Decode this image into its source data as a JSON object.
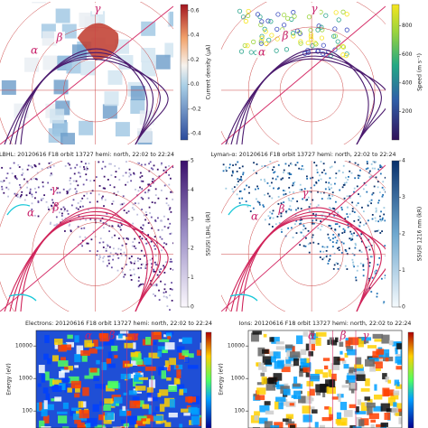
{
  "panels": [
    {
      "colorbar": {
        "label": "Current density (µA)",
        "lim": [
          -0.45,
          0.65
        ],
        "ticks": [
          0.6,
          0.4,
          0.2,
          {
            "value": 0,
            "label": "0.0"
          },
          -0.2,
          -0.4
        ]
      },
      "markers": [
        "α",
        "β",
        "γ"
      ]
    },
    {
      "colorbar": {
        "label": "Speed (m s⁻¹)",
        "lim": [
          0,
          950
        ],
        "ticks": [
          800,
          600,
          400,
          200
        ]
      },
      "markers": [
        "α",
        "β",
        "γ"
      ]
    },
    {
      "title": "LBHL: 20120616 F18 orbit 13727 hemi: north, 22:02 to 22:24",
      "colorbar": {
        "label": "SSUSI LBHL (kR)",
        "lim": [
          0,
          5
        ],
        "ticks": [
          0,
          1,
          2,
          3,
          4,
          5
        ]
      },
      "markers": [
        "α",
        "β",
        "γ"
      ]
    },
    {
      "title": "Lyman-α: 20120616 F18 orbit 13727 hemi: north, 22:02 to 22:24",
      "colorbar": {
        "label": "SSUSI 1216 nm (kR)",
        "lim": [
          0,
          4
        ],
        "ticks": [
          0,
          1,
          2,
          3,
          4
        ]
      },
      "markers": [
        "α",
        "β",
        "γ"
      ]
    },
    {
      "title": "Electrons: 20120616 F18 orbit 13727 hemi: north, 22:02 to 22:24",
      "energy": {
        "label": "Energy (eV)",
        "lim": [
          30,
          30000
        ],
        "ticks": [
          10000,
          1000,
          100
        ]
      },
      "markers": [
        "α",
        "β",
        "γ"
      ]
    },
    {
      "title": "Ions: 20120616 F18 orbit 13727 hemi: north, 22:02 to 22:24",
      "energy": {
        "label": "Energy (eV)",
        "lim": [
          30,
          30000
        ],
        "ticks": [
          10000,
          1000,
          100
        ]
      },
      "markers": [
        "α",
        "β",
        "γ"
      ]
    }
  ]
}
